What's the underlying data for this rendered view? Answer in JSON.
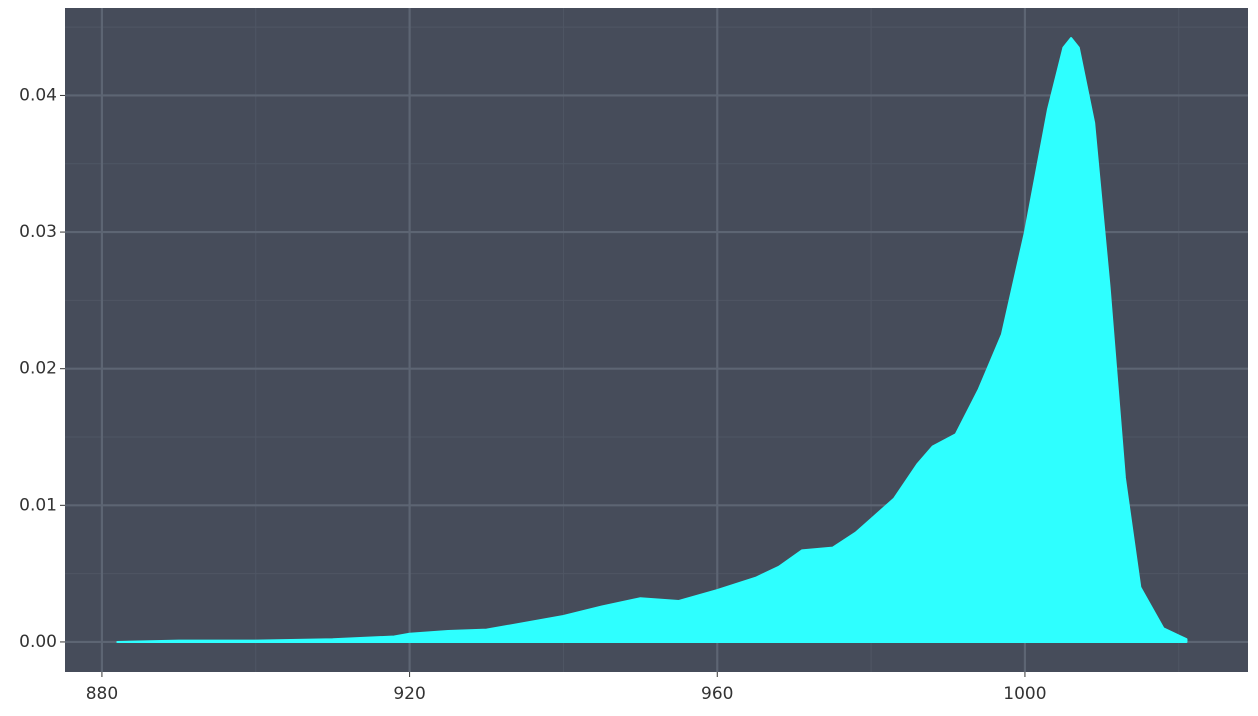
{
  "chart_data": {
    "type": "area",
    "x": [
      882,
      890,
      900,
      910,
      918,
      920,
      925,
      930,
      935,
      940,
      945,
      950,
      955,
      960,
      965,
      968,
      971,
      975,
      978,
      980,
      983,
      986,
      988,
      991,
      994,
      997,
      1000,
      1003,
      1005,
      1006,
      1007,
      1009,
      1011,
      1013,
      1015,
      1018,
      1021
    ],
    "values": [
      0,
      0.0001,
      0.0001,
      0.0002,
      0.0004,
      0.0006,
      0.0008,
      0.0009,
      0.0014,
      0.0019,
      0.0026,
      0.0032,
      0.003,
      0.0038,
      0.0047,
      0.0055,
      0.0067,
      0.0069,
      0.008,
      0.009,
      0.0105,
      0.013,
      0.0143,
      0.0152,
      0.0185,
      0.0225,
      0.03,
      0.039,
      0.0435,
      0.0442,
      0.0435,
      0.038,
      0.026,
      0.012,
      0.004,
      0.001,
      0.0002
    ],
    "color": "#2effff",
    "xlim": [
      875.2,
      1029
    ],
    "ylim": [
      -0.0022,
      0.0464
    ],
    "xticks": [
      880,
      920,
      960,
      1000
    ],
    "yticks": [
      {
        "value": 0,
        "label": "0.00"
      },
      {
        "value": 0.01,
        "label": "0.01"
      },
      {
        "value": 0.02,
        "label": "0.02"
      },
      {
        "value": 0.03,
        "label": "0.03"
      },
      {
        "value": 0.04,
        "label": "0.04"
      }
    ],
    "x_minor_grid": [
      900,
      940,
      980,
      1020
    ],
    "y_minor_grid": [
      0.005,
      0.015,
      0.025,
      0.035,
      0.045
    ],
    "grid": true
  }
}
